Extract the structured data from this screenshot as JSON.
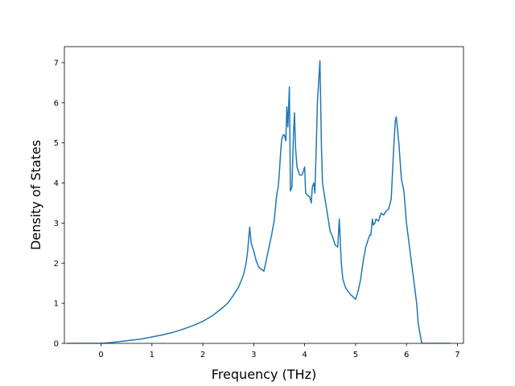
{
  "chart_data": {
    "type": "line",
    "title": "",
    "xlabel": "Frequency (THz)",
    "ylabel": "Density of States",
    "xlim": [
      -0.72,
      7.12
    ],
    "ylim": [
      0,
      7.4
    ],
    "xticks": [
      0,
      1,
      2,
      3,
      4,
      5,
      6,
      7
    ],
    "yticks": [
      0,
      1,
      2,
      3,
      4,
      5,
      6,
      7
    ],
    "grid": false,
    "legend": "none",
    "series": [
      {
        "color": "#1f77b4",
        "x": [
          -0.65,
          -0.2,
          0.0,
          0.2,
          0.4,
          0.6,
          0.8,
          1.0,
          1.2,
          1.4,
          1.6,
          1.8,
          2.0,
          2.2,
          2.4,
          2.5,
          2.6,
          2.7,
          2.75,
          2.8,
          2.85,
          2.88,
          2.92,
          2.95,
          3.0,
          3.05,
          3.1,
          3.15,
          3.2,
          3.25,
          3.3,
          3.35,
          3.4,
          3.42,
          3.45,
          3.48,
          3.5,
          3.53,
          3.55,
          3.58,
          3.6,
          3.63,
          3.65,
          3.67,
          3.7,
          3.72,
          3.75,
          3.78,
          3.8,
          3.82,
          3.85,
          3.9,
          3.95,
          4.0,
          4.02,
          4.05,
          4.1,
          4.13,
          4.15,
          4.18,
          4.2,
          4.23,
          4.25,
          4.3,
          4.33,
          4.35,
          4.4,
          4.45,
          4.5,
          4.55,
          4.6,
          4.65,
          4.68,
          4.72,
          4.75,
          4.8,
          4.85,
          4.9,
          5.0,
          5.05,
          5.1,
          5.15,
          5.2,
          5.25,
          5.28,
          5.3,
          5.33,
          5.35,
          5.38,
          5.4,
          5.45,
          5.5,
          5.55,
          5.6,
          5.65,
          5.7,
          5.75,
          5.78,
          5.8,
          5.85,
          5.9,
          5.95,
          6.0,
          6.05,
          6.1,
          6.15,
          6.2,
          6.23,
          6.3,
          6.5,
          6.85
        ],
        "y": [
          0.0,
          0.0,
          0.0,
          0.02,
          0.05,
          0.08,
          0.11,
          0.16,
          0.21,
          0.27,
          0.35,
          0.44,
          0.55,
          0.7,
          0.9,
          1.02,
          1.2,
          1.4,
          1.55,
          1.72,
          2.0,
          2.3,
          2.9,
          2.5,
          2.3,
          2.05,
          1.9,
          1.85,
          1.8,
          2.1,
          2.4,
          2.7,
          3.05,
          3.3,
          3.7,
          3.9,
          4.2,
          4.8,
          5.1,
          5.2,
          5.2,
          5.05,
          5.9,
          5.4,
          6.4,
          3.8,
          3.9,
          5.2,
          5.75,
          4.9,
          4.4,
          4.2,
          4.2,
          4.4,
          3.75,
          3.7,
          3.65,
          3.5,
          3.9,
          4.0,
          3.75,
          5.0,
          6.0,
          7.05,
          4.9,
          4.0,
          3.6,
          3.2,
          2.8,
          2.65,
          2.45,
          2.4,
          3.1,
          2.0,
          1.6,
          1.4,
          1.3,
          1.22,
          1.1,
          1.3,
          1.6,
          2.05,
          2.4,
          2.6,
          2.7,
          2.7,
          3.1,
          2.95,
          3.0,
          3.1,
          3.05,
          3.25,
          3.2,
          3.3,
          3.35,
          3.6,
          4.9,
          5.55,
          5.65,
          5.0,
          4.1,
          3.8,
          3.0,
          2.5,
          2.0,
          1.5,
          1.0,
          0.5,
          0.0,
          0.0,
          0.0
        ]
      }
    ]
  }
}
